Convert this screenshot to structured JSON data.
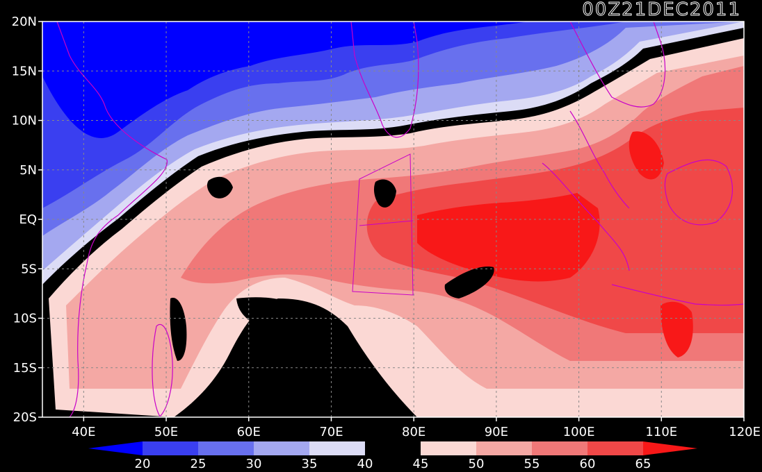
{
  "title": "00Z21DEC2011",
  "map": {
    "lon_range": [
      35,
      120
    ],
    "lat_range": [
      -20,
      20
    ],
    "lat_ticks": [
      {
        "value": 20,
        "label": "20N"
      },
      {
        "value": 15,
        "label": "15N"
      },
      {
        "value": 10,
        "label": "10N"
      },
      {
        "value": 5,
        "label": "5N"
      },
      {
        "value": 0,
        "label": "EQ"
      },
      {
        "value": -5,
        "label": "5S"
      },
      {
        "value": -10,
        "label": "10S"
      },
      {
        "value": -15,
        "label": "15S"
      },
      {
        "value": -20,
        "label": "20S"
      }
    ],
    "lon_ticks": [
      {
        "value": 40,
        "label": "40E"
      },
      {
        "value": 50,
        "label": "50E"
      },
      {
        "value": 60,
        "label": "60E"
      },
      {
        "value": 70,
        "label": "70E"
      },
      {
        "value": 80,
        "label": "80E"
      },
      {
        "value": 90,
        "label": "90E"
      },
      {
        "value": 100,
        "label": "100E"
      },
      {
        "value": 110,
        "label": "110E"
      },
      {
        "value": 120,
        "label": "120E"
      }
    ]
  },
  "colorbar": {
    "levels": [
      "20",
      "25",
      "30",
      "35",
      "40",
      "45",
      "50",
      "55",
      "60",
      "65"
    ],
    "colors": [
      "#0000ff",
      "#3a3ff0",
      "#6870ee",
      "#a4a8f0",
      "#dcdcf6",
      "#000000",
      "#fbd8d4",
      "#f4a8a4",
      "#f07878",
      "#f04848",
      "#f81818"
    ]
  },
  "colors": {
    "background": "#000000",
    "land_outline": "#c800c8",
    "frame": "#ffffff"
  }
}
